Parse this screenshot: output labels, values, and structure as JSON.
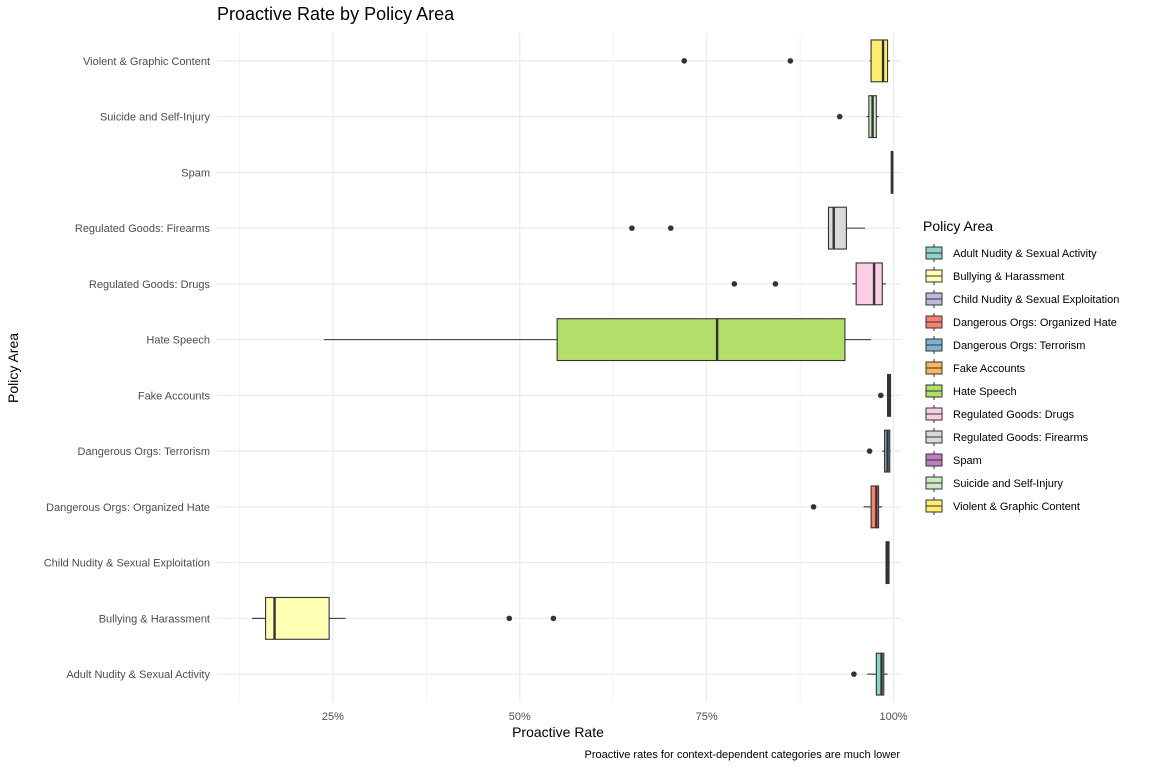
{
  "chart_data": {
    "type": "boxplot",
    "orientation": "horizontal",
    "title": "Proactive Rate by Policy Area",
    "xlabel": "Proactive Rate",
    "ylabel": "Policy Area",
    "caption": "Proactive rates for context-dependent categories are much lower",
    "xlim": [
      0.095,
      1.01
    ],
    "x_ticks": [
      0.25,
      0.5,
      0.75,
      1.0
    ],
    "x_tick_labels": [
      "25%",
      "50%",
      "75%",
      "100%"
    ],
    "grid": true,
    "legend": {
      "title": "Policy Area",
      "position": "right"
    },
    "categories": [
      "Adult Nudity & Sexual Activity",
      "Bullying & Harassment",
      "Child Nudity & Sexual Exploitation",
      "Dangerous Orgs: Organized Hate",
      "Dangerous Orgs: Terrorism",
      "Fake Accounts",
      "Hate Speech",
      "Regulated Goods: Drugs",
      "Regulated Goods: Firearms",
      "Spam",
      "Suicide and Self-Injury",
      "Violent & Graphic Content"
    ],
    "colors": [
      "#8dd3c7",
      "#ffffb3",
      "#bebada",
      "#fb8072",
      "#80b1d3",
      "#fdb462",
      "#b3de69",
      "#fccde5",
      "#d9d9d9",
      "#bc80bd",
      "#ccebc5",
      "#ffed6f"
    ],
    "boxes": [
      {
        "category": "Adult Nudity & Sexual Activity",
        "whisker_low": 0.965,
        "q1": 0.977,
        "median": 0.984,
        "q3": 0.987,
        "whisker_high": 0.992,
        "outliers": [
          0.947
        ]
      },
      {
        "category": "Bullying & Harassment",
        "whisker_low": 0.142,
        "q1": 0.16,
        "median": 0.172,
        "q3": 0.245,
        "whisker_high": 0.267,
        "outliers": [
          0.486,
          0.545
        ]
      },
      {
        "category": "Child Nudity & Sexual Exploitation",
        "whisker_low": 0.99,
        "q1": 0.99,
        "median": 0.992,
        "q3": 0.994,
        "whisker_high": 0.995,
        "outliers": []
      },
      {
        "category": "Dangerous Orgs: Organized Hate",
        "whisker_low": 0.96,
        "q1": 0.97,
        "median": 0.977,
        "q3": 0.98,
        "whisker_high": 0.985,
        "outliers": [
          0.893
        ]
      },
      {
        "category": "Dangerous Orgs: Terrorism",
        "whisker_low": 0.985,
        "q1": 0.988,
        "median": 0.992,
        "q3": 0.995,
        "whisker_high": 0.996,
        "outliers": [
          0.968
        ]
      },
      {
        "category": "Fake Accounts",
        "whisker_low": 0.991,
        "q1": 0.992,
        "median": 0.994,
        "q3": 0.996,
        "whisker_high": 0.997,
        "outliers": [
          0.983
        ]
      },
      {
        "category": "Hate Speech",
        "whisker_low": 0.238,
        "q1": 0.55,
        "median": 0.764,
        "q3": 0.935,
        "whisker_high": 0.97,
        "outliers": []
      },
      {
        "category": "Regulated Goods: Drugs",
        "whisker_low": 0.945,
        "q1": 0.95,
        "median": 0.974,
        "q3": 0.985,
        "whisker_high": 0.99,
        "outliers": [
          0.787,
          0.842
        ]
      },
      {
        "category": "Regulated Goods: Firearms",
        "whisker_low": 0.912,
        "q1": 0.913,
        "median": 0.92,
        "q3": 0.937,
        "whisker_high": 0.962,
        "outliers": [
          0.65,
          0.702
        ]
      },
      {
        "category": "Spam",
        "whisker_low": 0.997,
        "q1": 0.997,
        "median": 0.998,
        "q3": 0.999,
        "whisker_high": 0.999,
        "outliers": []
      },
      {
        "category": "Suicide and Self-Injury",
        "whisker_low": 0.964,
        "q1": 0.967,
        "median": 0.972,
        "q3": 0.977,
        "whisker_high": 0.98,
        "outliers": [
          0.928
        ]
      },
      {
        "category": "Violent & Graphic Content",
        "whisker_low": 0.968,
        "q1": 0.97,
        "median": 0.986,
        "q3": 0.992,
        "whisker_high": 0.995,
        "outliers": [
          0.72,
          0.862
        ]
      }
    ]
  }
}
